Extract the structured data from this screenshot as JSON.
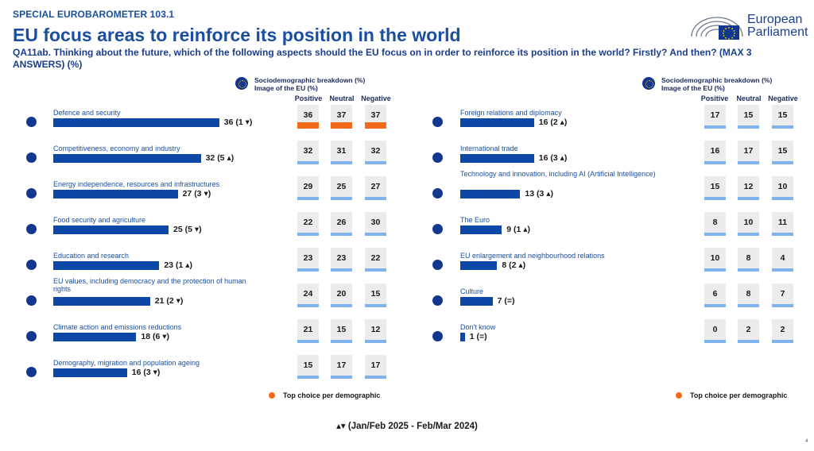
{
  "header": {
    "survey_label": "SPECIAL EUROBAROMETER 103.1",
    "title": "EU focus areas to reinforce its position in the world",
    "question": "QA11ab. Thinking about the future, which of the following aspects should the EU focus on in order to reinforce its position in the world? Firstly? And then? (MAX 3 ANSWERS) (%)",
    "logo_line1": "European",
    "logo_line2": "Parliament"
  },
  "legend": {
    "title_line1": "Sociodemographic breakdown (%)",
    "title_line2": "Image of the EU (%)",
    "columns": [
      "Positive",
      "Neutral",
      "Negative"
    ],
    "top_choice_note": "Top choice per demographic"
  },
  "footnote": "▴▾ (Jan/Feb 2025 - Feb/Mar 2024)",
  "page_mark": "4",
  "colors": {
    "bar": "#0d47a8",
    "cell_bar": "#7fb3ec",
    "top_choice": "#f26b1d",
    "title": "#1a4fa0"
  },
  "chart_data": [
    {
      "type": "bar",
      "categories": [
        "Defence and security",
        "Competitiveness, economy and industry",
        "Energy independence, resources and infrastructures",
        "Food security and agriculture",
        "Education and research",
        "EU values, including democracy and the protection of human rights",
        "Climate action and emissions reductions",
        "Demography, migration and population ageing"
      ],
      "values": [
        36,
        32,
        27,
        25,
        23,
        21,
        18,
        16
      ],
      "value_labels": [
        "36 (1 ▾)",
        "32 (5 ▴)",
        "27 (3 ▾)",
        "25 (5 ▾)",
        "23 (1 ▴)",
        "21 (2 ▾)",
        "18 (6 ▾)",
        "16 (3 ▾)"
      ],
      "breakdown": {
        "columns": [
          "Positive",
          "Neutral",
          "Negative"
        ],
        "values": [
          [
            36,
            37,
            37
          ],
          [
            32,
            31,
            32
          ],
          [
            29,
            25,
            27
          ],
          [
            22,
            26,
            30
          ],
          [
            23,
            23,
            22
          ],
          [
            24,
            20,
            15
          ],
          [
            21,
            15,
            12
          ],
          [
            15,
            17,
            17
          ]
        ],
        "top_choice": [
          [
            true,
            true,
            true
          ],
          [
            false,
            false,
            false
          ],
          [
            false,
            false,
            false
          ],
          [
            false,
            false,
            false
          ],
          [
            false,
            false,
            false
          ],
          [
            false,
            false,
            false
          ],
          [
            false,
            false,
            false
          ],
          [
            false,
            false,
            false
          ]
        ]
      }
    },
    {
      "type": "bar",
      "categories": [
        "Foreign relations and diplomacy",
        "International trade",
        "Technology and innovation, including AI (Artificial Intelligence)",
        "The Euro",
        "EU enlargement and neighbourhood relations",
        "Culture",
        "Don't know"
      ],
      "values": [
        16,
        16,
        13,
        9,
        8,
        7,
        1
      ],
      "value_labels": [
        "16 (2 ▴)",
        "16 (3 ▴)",
        "13 (3 ▴)",
        "9 (1 ▴)",
        "8 (2 ▴)",
        "7 (=)",
        "1 (=)"
      ],
      "breakdown": {
        "columns": [
          "Positive",
          "Neutral",
          "Negative"
        ],
        "values": [
          [
            17,
            15,
            15
          ],
          [
            16,
            17,
            15
          ],
          [
            15,
            12,
            10
          ],
          [
            8,
            10,
            11
          ],
          [
            10,
            8,
            4
          ],
          [
            6,
            8,
            7
          ],
          [
            0,
            2,
            2
          ]
        ],
        "top_choice": [
          [
            false,
            false,
            false
          ],
          [
            false,
            false,
            false
          ],
          [
            false,
            false,
            false
          ],
          [
            false,
            false,
            false
          ],
          [
            false,
            false,
            false
          ],
          [
            false,
            false,
            false
          ],
          [
            false,
            false,
            false
          ]
        ]
      }
    }
  ]
}
